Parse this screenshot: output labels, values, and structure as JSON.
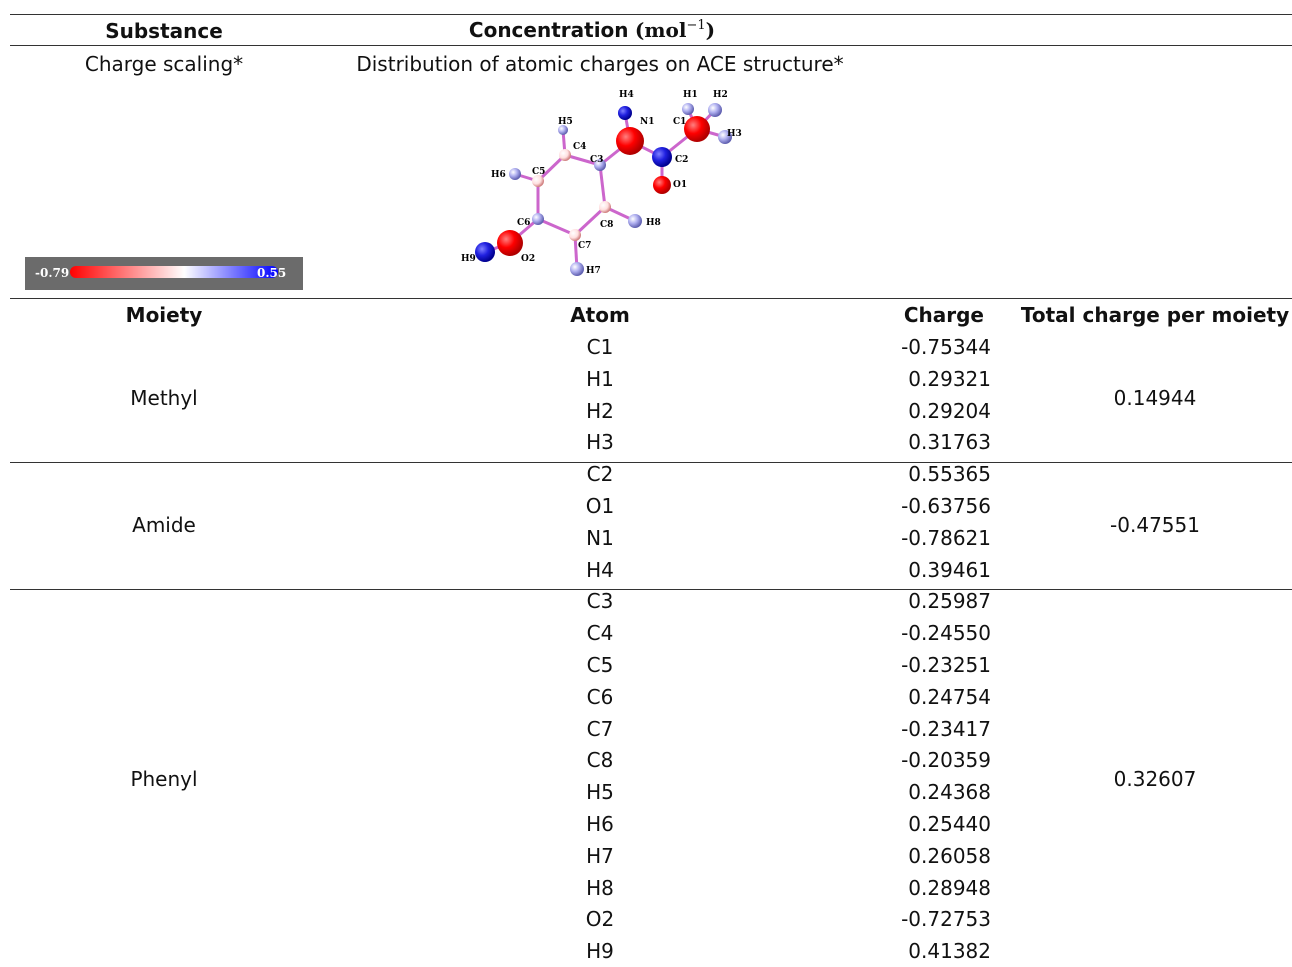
{
  "header": {
    "substance_label": "Substance",
    "concentration_label": "Concentration",
    "concentration_unit": "(mol",
    "concentration_exp": "−1",
    "concentration_close": ")",
    "charge_scaling_label": "Charge scaling*",
    "distribution_label": "Distribution of atomic charges on ACE structure*"
  },
  "colorbar": {
    "min_label": "-0.79",
    "max_label": "0.55",
    "min_color": "#ff0000",
    "max_color": "#0000ff"
  },
  "molecule_labels": {
    "H1": "H1",
    "H2": "H2",
    "H3": "H3",
    "H4": "H4",
    "H5": "H5",
    "H6": "H6",
    "H7": "H7",
    "H8": "H8",
    "H9": "H9",
    "C1": "C1",
    "C2": "C2",
    "C3": "C3",
    "C4": "C4",
    "C5": "C5",
    "C6": "C6",
    "C7": "C7",
    "C8": "C8",
    "N1": "N1",
    "O1": "O1",
    "O2": "O2"
  },
  "table": {
    "col_moiety": "Moiety",
    "col_atom": "Atom",
    "col_charge": "Charge",
    "col_total": "Total charge per moiety",
    "groups": [
      {
        "moiety": "Methyl",
        "total": "0.14944",
        "rows": [
          {
            "atom": "C1",
            "charge": "-0.75344"
          },
          {
            "atom": "H1",
            "charge": "0.29321"
          },
          {
            "atom": "H2",
            "charge": "0.29204"
          },
          {
            "atom": "H3",
            "charge": "0.31763"
          }
        ]
      },
      {
        "moiety": "Amide",
        "total": "-0.47551",
        "rows": [
          {
            "atom": "C2",
            "charge": "0.55365"
          },
          {
            "atom": "O1",
            "charge": "-0.63756"
          },
          {
            "atom": "N1",
            "charge": "-0.78621"
          },
          {
            "atom": "H4",
            "charge": "0.39461"
          }
        ]
      },
      {
        "moiety": "Phenyl",
        "total": "0.32607",
        "rows": [
          {
            "atom": "C3",
            "charge": "0.25987"
          },
          {
            "atom": "C4",
            "charge": "-0.24550"
          },
          {
            "atom": "C5",
            "charge": "-0.23251"
          },
          {
            "atom": "C6",
            "charge": "0.24754"
          },
          {
            "atom": "C7",
            "charge": "-0.23417"
          },
          {
            "atom": "C8",
            "charge": "-0.20359"
          },
          {
            "atom": "H5",
            "charge": "0.24368"
          },
          {
            "atom": "H6",
            "charge": "0.25440"
          },
          {
            "atom": "H7",
            "charge": "0.26058"
          },
          {
            "atom": "H8",
            "charge": "0.28948"
          },
          {
            "atom": "O2",
            "charge": "-0.72753"
          },
          {
            "atom": "H9",
            "charge": "0.41382"
          }
        ]
      }
    ]
  }
}
